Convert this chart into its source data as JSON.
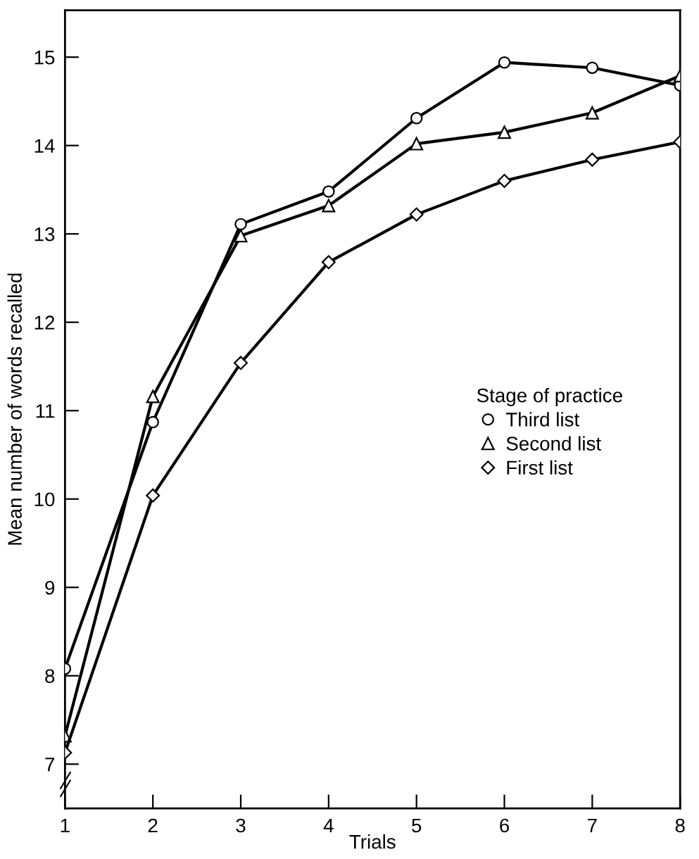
{
  "chart_data": {
    "type": "line",
    "xlabel": "Trials",
    "ylabel": "Mean number of words recalled",
    "legend_title": "Stage of practice",
    "x": [
      1,
      2,
      3,
      4,
      5,
      6,
      7,
      8
    ],
    "series": [
      {
        "name": "Third list",
        "color": "#000000",
        "marker": "circle",
        "values": [
          8.08,
          10.87,
          13.11,
          13.48,
          14.31,
          14.94,
          14.88,
          14.68
        ]
      },
      {
        "name": "Second list",
        "color": "#000000",
        "marker": "triangle",
        "values": [
          7.32,
          11.16,
          12.98,
          13.32,
          14.02,
          14.15,
          14.37,
          14.79
        ]
      },
      {
        "name": "First list",
        "color": "#000000",
        "marker": "diamond",
        "values": [
          7.13,
          10.04,
          11.54,
          12.68,
          13.22,
          13.6,
          13.84,
          14.04
        ]
      }
    ],
    "xlim": [
      1,
      8
    ],
    "xticks": [
      1,
      2,
      3,
      4,
      5,
      6,
      7,
      8
    ],
    "ylim": [
      6.5,
      15.53
    ],
    "yticks": [
      7,
      8,
      9,
      10,
      11,
      12,
      13,
      14,
      15
    ],
    "grid": false,
    "legend": "right",
    "line_style": "solid"
  }
}
